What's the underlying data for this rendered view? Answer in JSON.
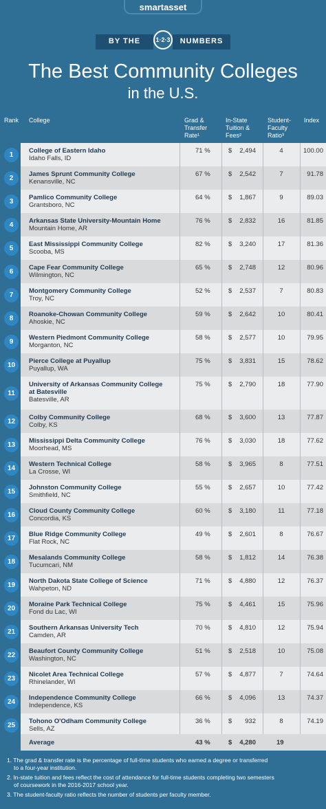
{
  "header": {
    "brand": "smartasset",
    "banner_left": "BY THE",
    "banner_badge": "1·2·3",
    "banner_right": "NUMBERS",
    "title": "The Best Community Colleges",
    "subtitle": "in the U.S."
  },
  "columns": {
    "rank": "Rank",
    "college": "College",
    "grad_1": "Grad &",
    "grad_2": "Transfer",
    "grad_3": "Rate¹",
    "tuition_1": "In-State",
    "tuition_2": "Tuition &",
    "tuition_3": "Fees²",
    "ratio_1": "Student-",
    "ratio_2": "Faculty",
    "ratio_3": "Ratio³",
    "index": "Index"
  },
  "rows": [
    {
      "rank": "1",
      "name": "College of Eastern Idaho",
      "name2": "",
      "location": "Idaho Falls, ID",
      "grad": "71 %",
      "tuition": "2,494",
      "ratio": "4",
      "index": "100.00"
    },
    {
      "rank": "2",
      "name": "James Sprunt Community College",
      "name2": "",
      "location": "Kenansville, NC",
      "grad": "67 %",
      "tuition": "2,542",
      "ratio": "7",
      "index": "91.78"
    },
    {
      "rank": "3",
      "name": "Pamlico Community College",
      "name2": "",
      "location": "Grantsboro, NC",
      "grad": "64 %",
      "tuition": "1,867",
      "ratio": "9",
      "index": "89.03"
    },
    {
      "rank": "4",
      "name": "Arkansas State University-Mountain Home",
      "name2": "",
      "location": "Mountain Home, AR",
      "grad": "76 %",
      "tuition": "2,832",
      "ratio": "16",
      "index": "81.85"
    },
    {
      "rank": "5",
      "name": "East Mississippi Community College",
      "name2": "",
      "location": "Scooba, MS",
      "grad": "82 %",
      "tuition": "3,240",
      "ratio": "17",
      "index": "81.36"
    },
    {
      "rank": "6",
      "name": "Cape Fear Community College",
      "name2": "",
      "location": "Wilmington, NC",
      "grad": "65 %",
      "tuition": "2,748",
      "ratio": "12",
      "index": "80.96"
    },
    {
      "rank": "7",
      "name": "Montgomery Community College",
      "name2": "",
      "location": "Troy, NC",
      "grad": "52 %",
      "tuition": "2,537",
      "ratio": "7",
      "index": "80.83"
    },
    {
      "rank": "8",
      "name": "Roanoke-Chowan Community College",
      "name2": "",
      "location": "Ahoskie, NC",
      "grad": "59 %",
      "tuition": "2,642",
      "ratio": "10",
      "index": "80.41"
    },
    {
      "rank": "9",
      "name": "Western Piedmont Community College",
      "name2": "",
      "location": "Morganton, NC",
      "grad": "58 %",
      "tuition": "2,577",
      "ratio": "10",
      "index": "79.95"
    },
    {
      "rank": "10",
      "name": "Pierce College at Puyallup",
      "name2": "",
      "location": "Puyallup, WA",
      "grad": "75 %",
      "tuition": "3,831",
      "ratio": "15",
      "index": "78.62"
    },
    {
      "rank": "11",
      "name": "University of Arkansas Community College",
      "name2": "at Batesville",
      "location": "Batesville, AR",
      "grad": "75 %",
      "tuition": "2,790",
      "ratio": "18",
      "index": "77.90"
    },
    {
      "rank": "12",
      "name": "Colby Community College",
      "name2": "",
      "location": "Colby, KS",
      "grad": "68 %",
      "tuition": "3,600",
      "ratio": "13",
      "index": "77.87"
    },
    {
      "rank": "13",
      "name": "Mississippi Delta Community College",
      "name2": "",
      "location": "Moorhead, MS",
      "grad": "76 %",
      "tuition": "3,030",
      "ratio": "18",
      "index": "77.62"
    },
    {
      "rank": "14",
      "name": "Western Technical College",
      "name2": "",
      "location": "La Crosse, WI",
      "grad": "58 %",
      "tuition": "3,965",
      "ratio": "8",
      "index": "77.51"
    },
    {
      "rank": "15",
      "name": "Johnston Community College",
      "name2": "",
      "location": "Smithfield, NC",
      "grad": "55 %",
      "tuition": "2,657",
      "ratio": "10",
      "index": "77.42"
    },
    {
      "rank": "16",
      "name": "Cloud County Community College",
      "name2": "",
      "location": "Concordia, KS",
      "grad": "60 %",
      "tuition": "3,180",
      "ratio": "11",
      "index": "77.18"
    },
    {
      "rank": "17",
      "name": "Blue Ridge Community College",
      "name2": "",
      "location": "Flat Rock, NC",
      "grad": "49 %",
      "tuition": "2,601",
      "ratio": "8",
      "index": "76.67"
    },
    {
      "rank": "18",
      "name": "Mesalands Community College",
      "name2": "",
      "location": "Tucumcari, NM",
      "grad": "58 %",
      "tuition": "1,812",
      "ratio": "14",
      "index": "76.38"
    },
    {
      "rank": "19",
      "name": "North Dakota State College of Science",
      "name2": "",
      "location": "Wahpeton, ND",
      "grad": "71 %",
      "tuition": "4,880",
      "ratio": "12",
      "index": "76.37"
    },
    {
      "rank": "20",
      "name": "Moraine Park Technical College",
      "name2": "",
      "location": "Fond du Lac, WI",
      "grad": "75 %",
      "tuition": "4,461",
      "ratio": "15",
      "index": "75.96"
    },
    {
      "rank": "21",
      "name": "Southern Arkansas University Tech",
      "name2": "",
      "location": "Camden, AR",
      "grad": "70 %",
      "tuition": "4,810",
      "ratio": "12",
      "index": "75.94"
    },
    {
      "rank": "22",
      "name": "Beaufort County Community College",
      "name2": "",
      "location": "Washington, NC",
      "grad": "51 %",
      "tuition": "2,518",
      "ratio": "10",
      "index": "75.08"
    },
    {
      "rank": "23",
      "name": "Nicolet Area Technical College",
      "name2": "",
      "location": "Rhinelander, WI",
      "grad": "57 %",
      "tuition": "4,877",
      "ratio": "7",
      "index": "74.64"
    },
    {
      "rank": "24",
      "name": "Independence Community College",
      "name2": "",
      "location": "Independence, KS",
      "grad": "66 %",
      "tuition": "4,096",
      "ratio": "13",
      "index": "74.37"
    },
    {
      "rank": "25",
      "name": "Tohono O'Odham Community College",
      "name2": "",
      "location": "Sells, AZ",
      "grad": "36 %",
      "tuition": "932",
      "ratio": "8",
      "index": "74.19"
    }
  ],
  "average": {
    "label": "Average",
    "grad": "43 %",
    "tuition": "4,280",
    "ratio": "19"
  },
  "currency": "$",
  "footnotes": [
    "1. The grad & transfer rate is the percentage of full-time students who earned a degree or transferred",
    "to a four-year institution.",
    "2. In-state tuition and fees reflect the cost of attendance for full-time students completing two semesters",
    "of coursework in the 2016-2017 school year.",
    "3. The student-faculty ratio reflects the number of students per faculty member."
  ]
}
